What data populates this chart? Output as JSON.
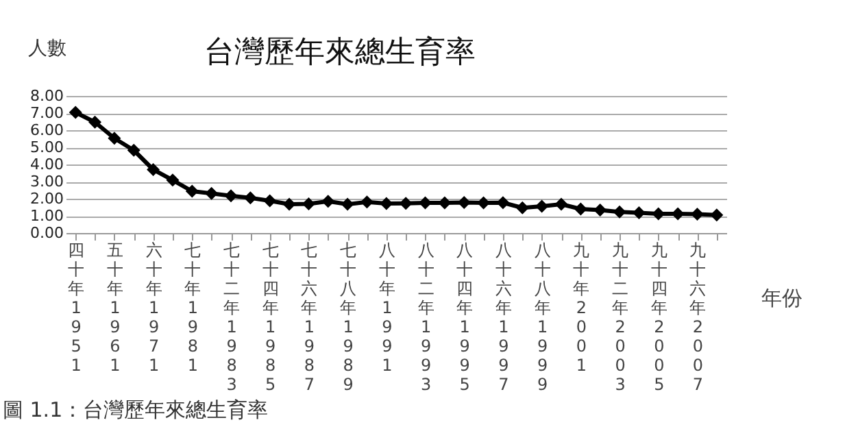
{
  "chart_data": {
    "type": "line",
    "title": "台灣歷年來總生育率",
    "xlabel": "年份",
    "ylabel": "人數",
    "categories": [
      "四十年 1951",
      null,
      "五十年 1961",
      null,
      "六十年 1971",
      null,
      "七十年 1981",
      null,
      "七十二年 1983",
      null,
      "七十四年 1985",
      null,
      "七十六年 1987",
      null,
      "七十八年 1989",
      null,
      "八十年 1991",
      null,
      "八十二年 1993",
      null,
      "八十四年 1995",
      null,
      "八十六年 1997",
      null,
      "八十八年 1999",
      null,
      "九十年 2001",
      null,
      "九十二年 2003",
      null,
      "九十四年 2005",
      null,
      "九十六年 2007",
      null
    ],
    "series": [
      {
        "color": "#000000",
        "values": [
          7.04,
          6.47,
          5.53,
          4.83,
          3.7,
          3.09,
          2.44,
          2.31,
          2.17,
          2.05,
          1.88,
          1.68,
          1.7,
          1.85,
          1.68,
          1.81,
          1.72,
          1.73,
          1.76,
          1.76,
          1.78,
          1.76,
          1.77,
          1.47,
          1.56,
          1.68,
          1.4,
          1.34,
          1.23,
          1.18,
          1.12,
          1.12,
          1.1,
          1.05
        ]
      }
    ],
    "ylim": [
      0,
      8
    ],
    "yticks": [
      {
        "value": 0,
        "label": "0.00"
      },
      {
        "value": 1,
        "label": "1.00"
      },
      {
        "value": 2,
        "label": "2.00"
      },
      {
        "value": 3,
        "label": "3.00"
      },
      {
        "value": 4,
        "label": "4.00"
      },
      {
        "value": 5,
        "label": "5.00"
      },
      {
        "value": 6,
        "label": "6.00"
      },
      {
        "value": 7,
        "label": "7.00"
      },
      {
        "value": 8,
        "label": "8.00"
      }
    ],
    "grid": "y",
    "marker": "diamond",
    "line_style": "solid",
    "annotations": [
      "圖 1.1：台灣歷年來總生育率"
    ]
  }
}
